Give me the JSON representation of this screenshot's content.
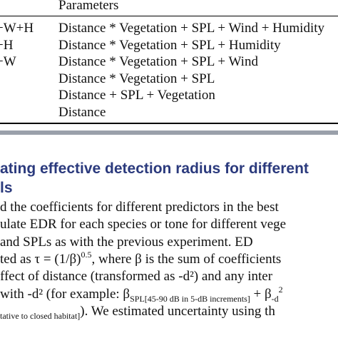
{
  "table": {
    "header": "Parameters",
    "rows": [
      [
        "+W+H",
        "Distance * Vegetation + SPL + Wind + Humidity"
      ],
      [
        "+H",
        "Distance * Vegetation + SPL + Humidity"
      ],
      [
        "+W",
        "Distance * Vegetation + SPL + Wind"
      ],
      [
        "",
        "Distance * Vegetation + SPL"
      ],
      [
        "",
        "Distance + SPL + Vegetation"
      ],
      [
        "",
        "Distance"
      ]
    ]
  },
  "section": {
    "heading": [
      "ating effective detection radius for different",
      "ls"
    ],
    "lines": [
      [
        "d the coefficients for different predictors in the best"
      ],
      [
        "ulate EDR for each species or tone for different vege"
      ],
      [
        "and SPLs as with the previous experiment. ED"
      ],
      [
        "ted as τ = (1/β)",
        {
          "sup": "0.5"
        },
        ", where β is the sum of coefficients"
      ],
      [
        "ffect of distance (transformed as -d²) and any inter"
      ],
      [
        "with -d² (for example: β",
        {
          "sub": "SPL[45-90 dB in 5-dB increments]"
        },
        " + β",
        {
          "sub": "-d"
        },
        {
          "sup": "2"
        }
      ],
      [
        {
          "sub": "tative to closed habitat]"
        },
        "). We estimated uncertainty using th"
      ]
    ]
  }
}
